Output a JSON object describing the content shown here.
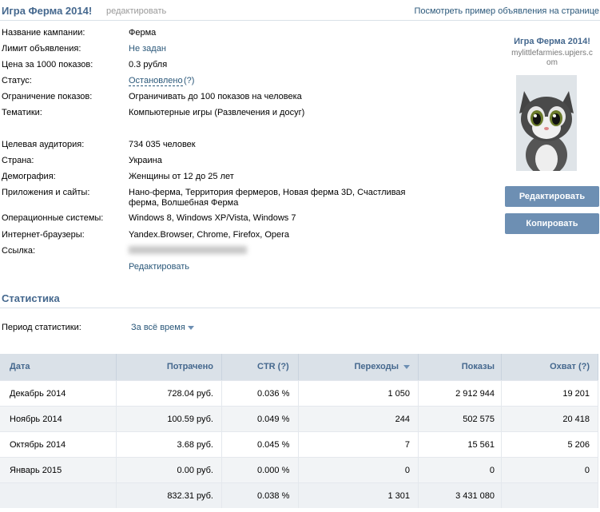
{
  "header": {
    "title": "Игра Ферма 2014!",
    "edit": "редактировать",
    "preview_link": "Посмотреть пример объявления на странице"
  },
  "fields": [
    {
      "label": "Название кампании:",
      "value": "Ферма"
    },
    {
      "label": "Лимит объявления:",
      "value": "Не задан"
    },
    {
      "label": "Цена за 1000 показов:",
      "value": "0.3 рубля"
    },
    {
      "label": "Статус:",
      "value": "Остановлено",
      "hint": "(?)"
    },
    {
      "label": "Ограничение показов:",
      "value": "Ограничивать до 100 показов на человека"
    },
    {
      "label": "Тематики:",
      "value": "Компьютерные игры (Развлечения и досуг)"
    },
    {
      "label": "Целевая аудитория:",
      "value": "734 035 человек"
    },
    {
      "label": "Страна:",
      "value": "Украина"
    },
    {
      "label": "Демография:",
      "value": "Женщины от 12 до 25 лет"
    },
    {
      "label": "Приложения и сайты:",
      "value": "Нано-ферма, Территория фермеров, Новая ферма 3D, Счастливая ферма, Волшебная Ферма"
    },
    {
      "label": "Операционные системы:",
      "value": "Windows 8, Windows XP/Vista, Windows 7"
    },
    {
      "label": "Интернет-браузеры:",
      "value": "Yandex.Browser, Chrome, Firefox, Opera"
    },
    {
      "label": "Ссылка:"
    }
  ],
  "fields_edit": "Редактировать",
  "ad_preview": {
    "title": "Игра Ферма 2014!",
    "domain": "mylittlefarmies.upjers.com",
    "buttons": [
      "Редактировать",
      "Копировать"
    ]
  },
  "statistics": {
    "title": "Статистика",
    "period_label": "Период статистики:",
    "period_value": "За всё время"
  },
  "table": {
    "columns": [
      "Дата",
      "Потрачено",
      "CTR (?)",
      "Переходы",
      "Показы",
      "Охват (?)"
    ],
    "rows": [
      [
        "Декабрь 2014",
        "728.04 руб.",
        "0.036 %",
        "1 050",
        "2 912 944",
        "19 201"
      ],
      [
        "Ноябрь 2014",
        "100.59 руб.",
        "0.049 %",
        "244",
        "502 575",
        "20 418"
      ],
      [
        "Октябрь 2014",
        "3.68 руб.",
        "0.045 %",
        "7",
        "15 561",
        "5 206"
      ],
      [
        "Январь 2015",
        "0.00 руб.",
        "0.000 %",
        "0",
        "0",
        "0"
      ]
    ],
    "total": {
      "spent": "832.31 руб.",
      "ctr": "0.038 %",
      "clicks": "1 301",
      "impressions": "3 431 080"
    }
  }
}
